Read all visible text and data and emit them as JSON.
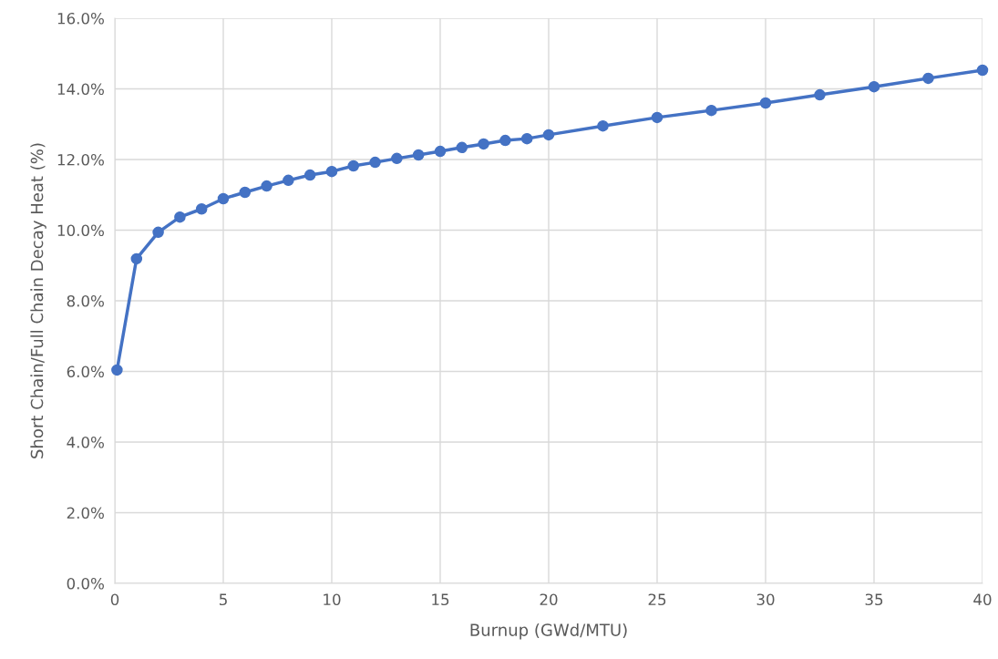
{
  "chart_data": {
    "type": "line",
    "xlabel": "Burnup (GWd/MTU)",
    "ylabel": "Short Chain/Full Chain Decay Heat (%)",
    "x": [
      0.1,
      1,
      2,
      3,
      4,
      5,
      6,
      7,
      8,
      9,
      10,
      11,
      12,
      13,
      14,
      15,
      16,
      17,
      18,
      19,
      20,
      22.5,
      25,
      27.5,
      30,
      32.5,
      35,
      37.5,
      40
    ],
    "series": [
      {
        "color": "#4472c4",
        "values": [
          6.04,
          9.19,
          9.94,
          10.37,
          10.6,
          10.89,
          11.07,
          11.25,
          11.41,
          11.56,
          11.66,
          11.82,
          11.92,
          12.03,
          12.13,
          12.23,
          12.34,
          12.44,
          12.54,
          12.59,
          12.7,
          12.95,
          13.19,
          13.39,
          13.6,
          13.83,
          14.06,
          14.3,
          14.53
        ]
      }
    ],
    "xlim": [
      0,
      40
    ],
    "xticks": [
      0,
      5,
      10,
      15,
      20,
      25,
      30,
      35,
      40
    ],
    "ylim": [
      0,
      16
    ],
    "yticks": [
      {
        "value": 0,
        "label": "0.0%"
      },
      {
        "value": 2,
        "label": "2.0%"
      },
      {
        "value": 4,
        "label": "4.0%"
      },
      {
        "value": 6,
        "label": "6.0%"
      },
      {
        "value": 8,
        "label": "8.0%"
      },
      {
        "value": 10,
        "label": "10.0%"
      },
      {
        "value": 12,
        "label": "12.0%"
      },
      {
        "value": 14,
        "label": "14.0%"
      },
      {
        "value": 16,
        "label": "16.0%"
      }
    ],
    "grid": true,
    "marker": "circle",
    "line_style": "solid"
  }
}
